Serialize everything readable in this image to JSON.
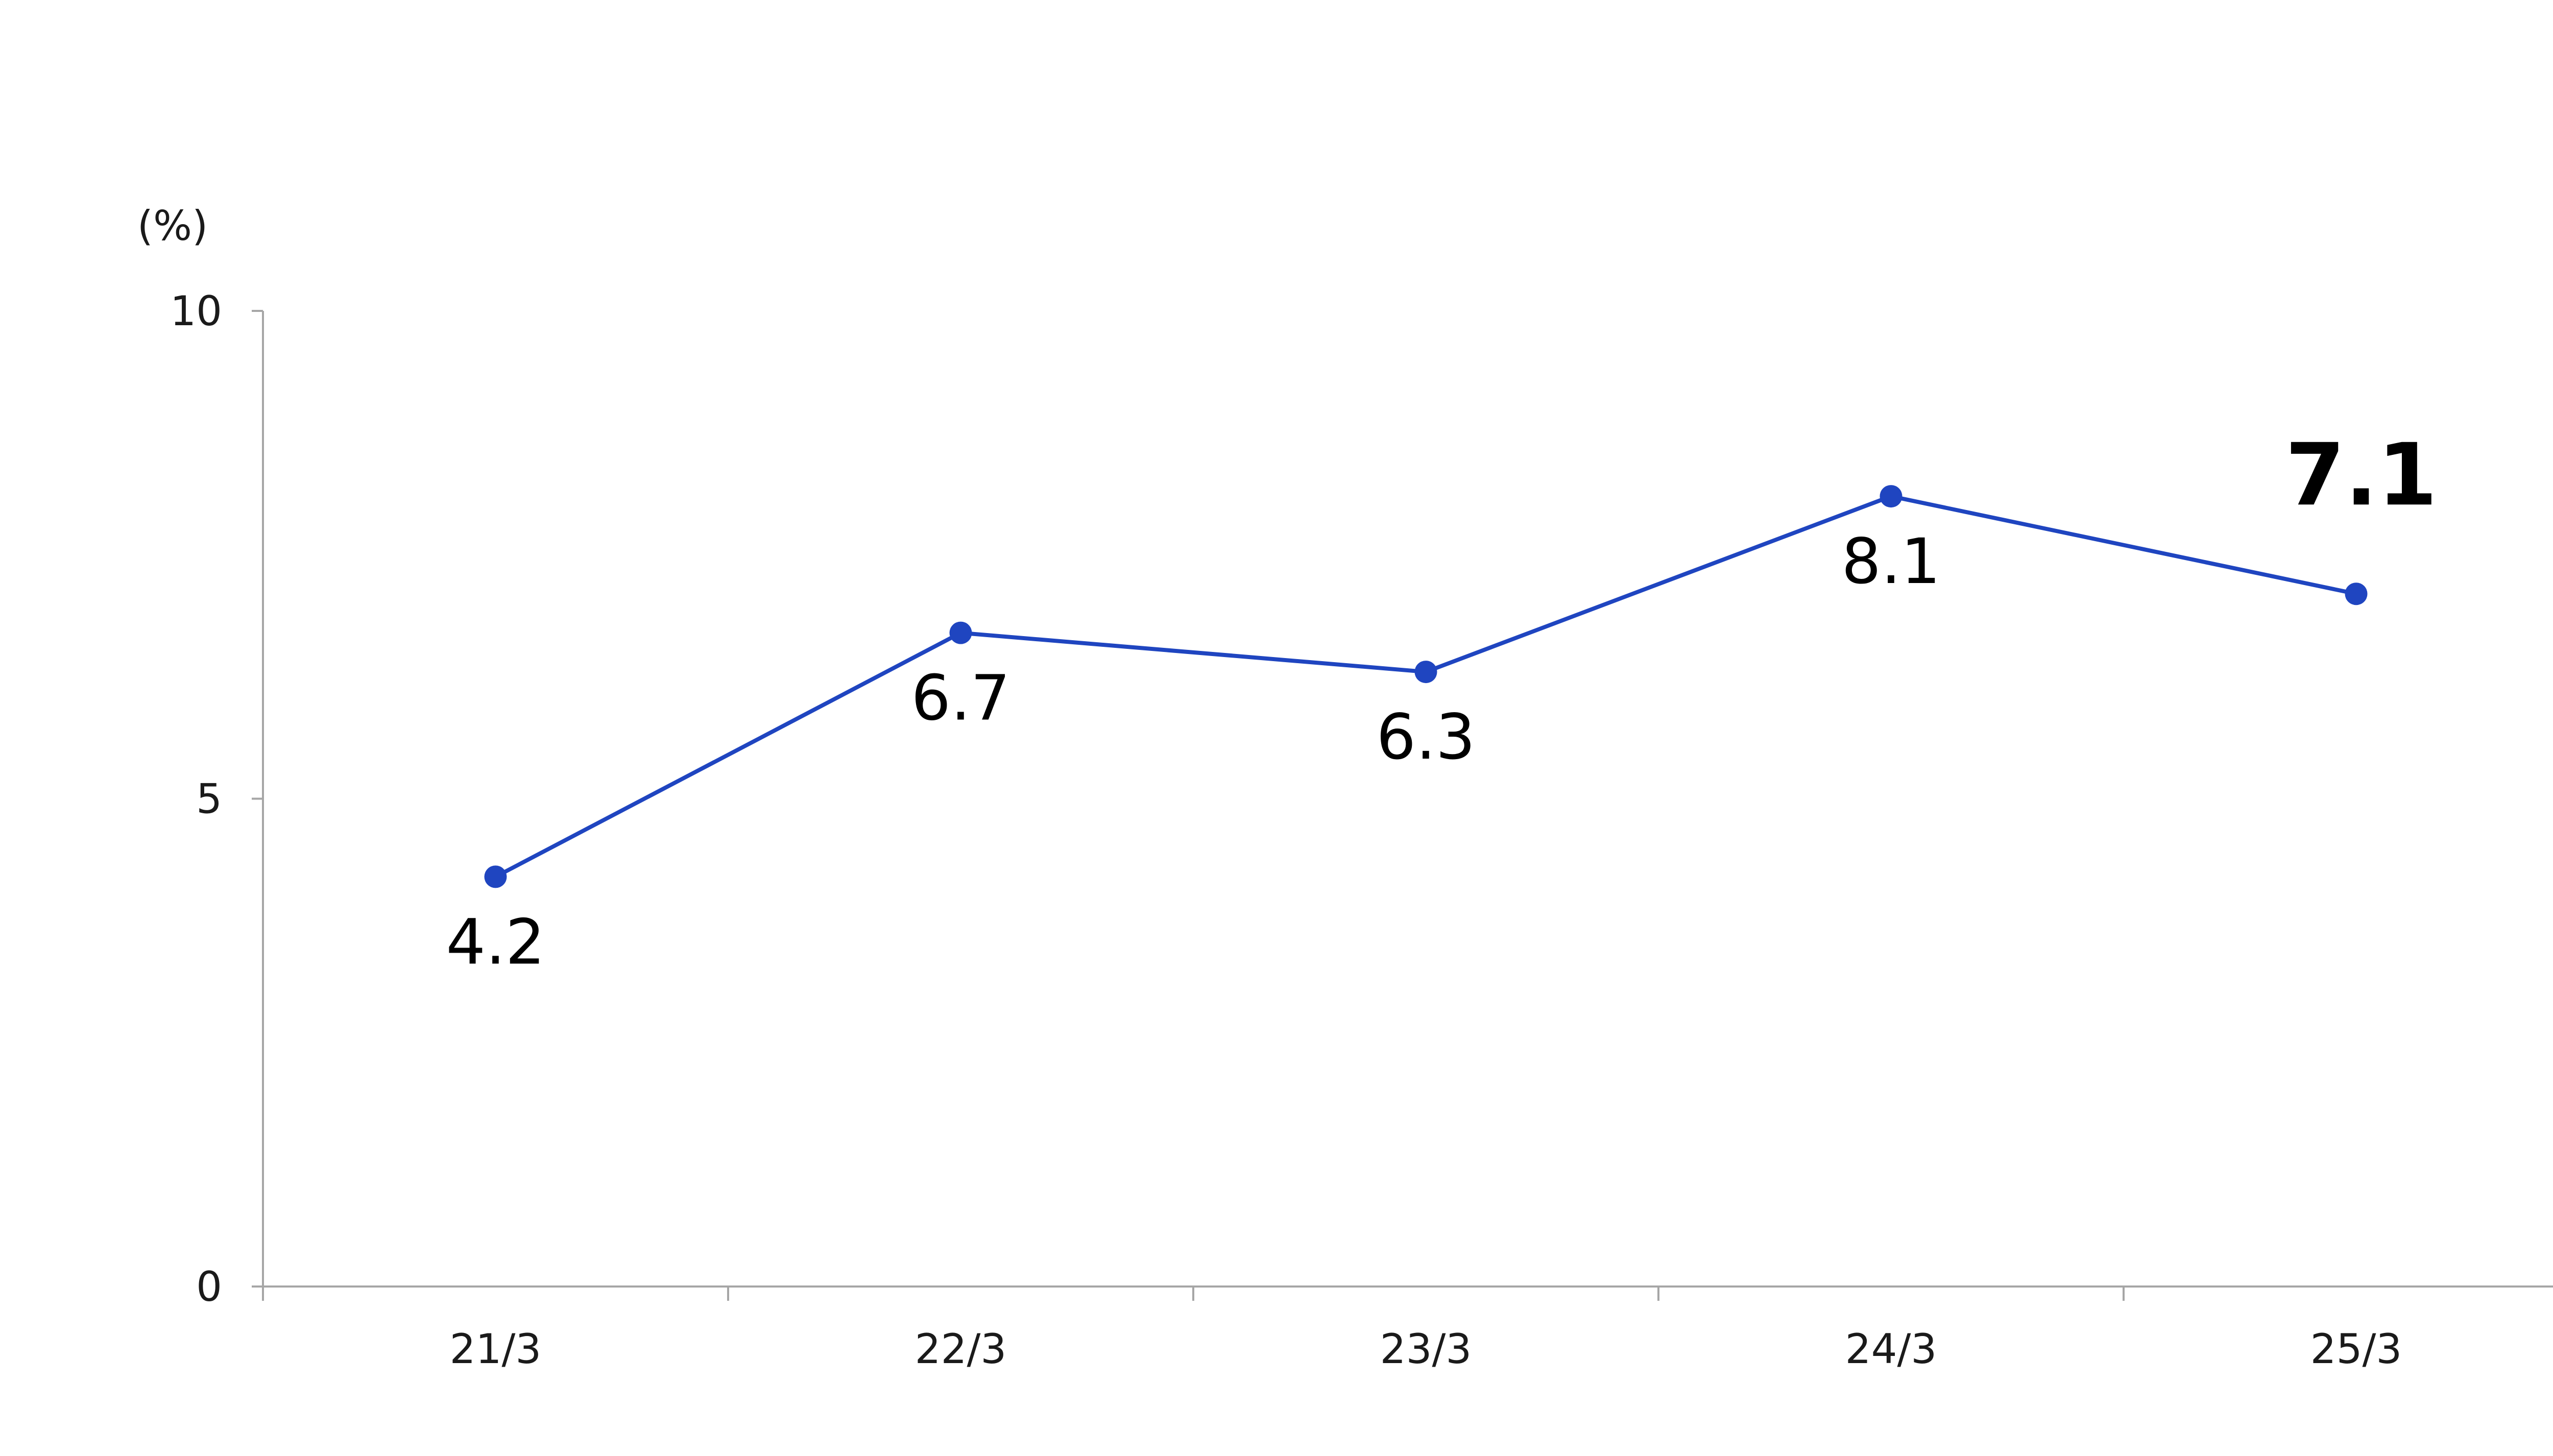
{
  "chart_data": {
    "type": "line",
    "categories": [
      "21/3",
      "22/3",
      "23/3",
      "24/3",
      "25/3"
    ],
    "series": [
      {
        "values": [
          4.2,
          6.7,
          6.3,
          8.1,
          7.1
        ],
        "color": "#1f45c0"
      }
    ],
    "data_labels": [
      "4.2",
      "6.7",
      "6.3",
      "8.1",
      "7.1"
    ],
    "highlighted_label_index": 4,
    "unit_label": "(%)",
    "ylim": [
      0,
      10
    ],
    "yticks": [
      0,
      5,
      10
    ],
    "ytick_labels": [
      "0",
      "5",
      "10"
    ],
    "grid": false,
    "legend": "none"
  }
}
